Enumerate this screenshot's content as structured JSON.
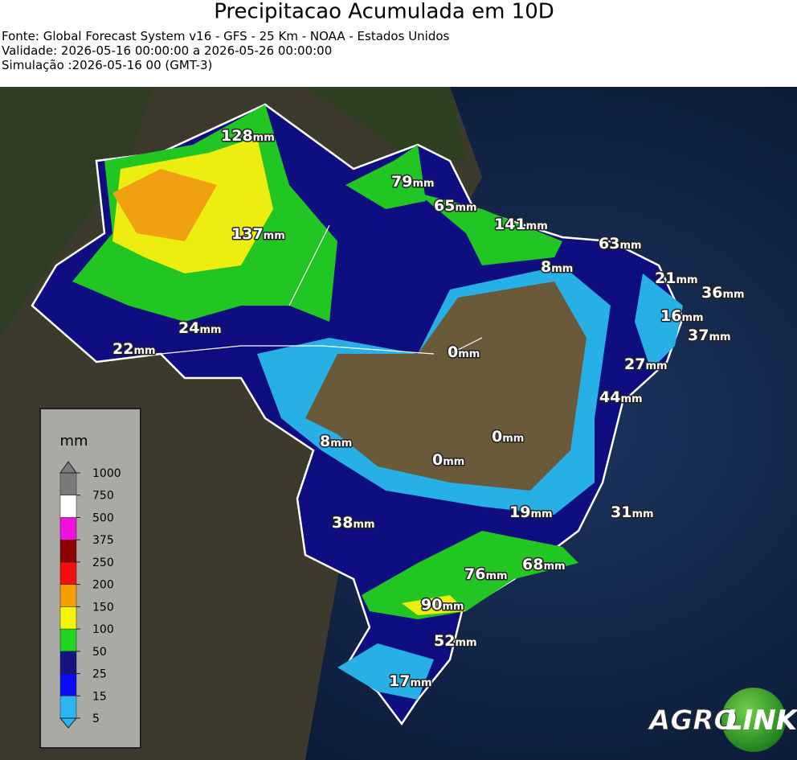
{
  "header": {
    "title": "Precipitacao Acumulada em 10D",
    "lines": [
      "Fonte: Global Forecast System v16 - GFS - 25 Km - NOAA - Estados Unidos",
      "Validade: 2026-05-16 00:00:00 a 2026-05-26 00:00:00",
      "Simulação :2026-05-16 00 (GMT-3)"
    ]
  },
  "labels": {
    "unit": "mm",
    "values": [
      128,
      79,
      65,
      141,
      137,
      63,
      8,
      21,
      36,
      16,
      24,
      37,
      22,
      0,
      27,
      44,
      8,
      0,
      0,
      31,
      19,
      38,
      68,
      76,
      90,
      52,
      17
    ]
  },
  "legend": {
    "title": "mm",
    "ticks": [
      5,
      15,
      25,
      50,
      100,
      150,
      200,
      250,
      375,
      500,
      750,
      1000
    ],
    "colors": [
      "#29b5f0",
      "#0a0af5",
      "#15157f",
      "#22d422",
      "#f5f500",
      "#f5a000",
      "#f51010",
      "#8c0000",
      "#f010e0",
      "#ffffff",
      "#7a7a7a"
    ]
  },
  "logo": {
    "left": "AGRO",
    "right": "LINK"
  }
}
